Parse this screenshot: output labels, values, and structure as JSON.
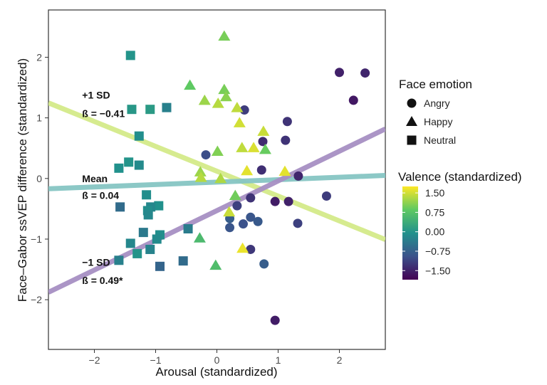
{
  "chart_data": {
    "type": "scatter",
    "xlabel": "Arousal (standardized)",
    "ylabel": "Face–Gabor ssVEP difference (standardized)",
    "xlim": [
      -2.75,
      2.75
    ],
    "ylim": [
      -2.82,
      2.78
    ],
    "x_ticks": [
      -2,
      -1,
      0,
      1,
      2
    ],
    "x_tick_labels": [
      "−2",
      "−1",
      "0",
      "1",
      "2"
    ],
    "y_ticks": [
      -2,
      -1,
      0,
      1,
      2
    ],
    "y_tick_labels": [
      "−2",
      "−1",
      "0",
      "1",
      "2"
    ],
    "grid": false,
    "legend_placement": "right",
    "shape_legend": {
      "title": "Face emotion",
      "entries": [
        {
          "label": "Angry",
          "shape": "circle"
        },
        {
          "label": "Happy",
          "shape": "triangle"
        },
        {
          "label": "Neutral",
          "shape": "square"
        }
      ]
    },
    "color_legend": {
      "title": "Valence (standardized)",
      "range": [
        -1.85,
        1.75
      ],
      "ticks": [
        1.5,
        0.75,
        0.0,
        -0.75,
        -1.5
      ],
      "tick_labels": [
        "1.50",
        "0.75",
        "0.00",
        "−0.75",
        "−1.50"
      ],
      "colormap": [
        "#440154",
        "#3b528b",
        "#21918c",
        "#5ec962",
        "#fde725"
      ]
    },
    "regression_lines": [
      {
        "label": "+1 SD",
        "beta_label": "ß = −0.41",
        "intercept": 0.12,
        "slope": -0.41,
        "color": "#d4ea8a",
        "label_x": -2.2,
        "label_y": 1.38,
        "beta_y": 1.07
      },
      {
        "label": "Mean",
        "beta_label": "ß = 0.04",
        "intercept": -0.06,
        "slope": 0.04,
        "color": "#86c6c4",
        "label_x": -2.2,
        "label_y": 0.0,
        "beta_y": -0.28
      },
      {
        "label": "−1 SD",
        "beta_label": "ß = 0.49*",
        "intercept": -0.53,
        "slope": 0.49,
        "color": "#a790c4",
        "label_x": -2.2,
        "label_y": -1.38,
        "beta_y": -1.68
      }
    ],
    "series": [
      {
        "name": "Angry",
        "shape": "circle",
        "points": [
          {
            "x": 2.0,
            "y": 1.75,
            "v": -1.5
          },
          {
            "x": 2.42,
            "y": 1.74,
            "v": -1.45
          },
          {
            "x": 2.23,
            "y": 1.29,
            "v": -1.6
          },
          {
            "x": 0.45,
            "y": 1.13,
            "v": -1.2
          },
          {
            "x": 1.15,
            "y": 0.94,
            "v": -1.3
          },
          {
            "x": 0.75,
            "y": 0.61,
            "v": -1.4
          },
          {
            "x": 1.12,
            "y": 0.63,
            "v": -1.3
          },
          {
            "x": -0.18,
            "y": 0.39,
            "v": -1.0
          },
          {
            "x": 0.73,
            "y": 0.14,
            "v": -1.35
          },
          {
            "x": 1.33,
            "y": 0.04,
            "v": -1.45
          },
          {
            "x": 1.79,
            "y": -0.29,
            "v": -1.2
          },
          {
            "x": 0.55,
            "y": -0.32,
            "v": -1.3
          },
          {
            "x": 0.95,
            "y": -0.38,
            "v": -1.55
          },
          {
            "x": 1.17,
            "y": -0.38,
            "v": -1.5
          },
          {
            "x": 0.33,
            "y": -0.45,
            "v": -1.15
          },
          {
            "x": 0.55,
            "y": -0.64,
            "v": -0.9
          },
          {
            "x": 0.21,
            "y": -0.66,
            "v": -0.8
          },
          {
            "x": 0.67,
            "y": -0.71,
            "v": -0.85
          },
          {
            "x": 1.32,
            "y": -0.74,
            "v": -1.15
          },
          {
            "x": 0.43,
            "y": -0.75,
            "v": -0.95
          },
          {
            "x": 0.21,
            "y": -0.81,
            "v": -0.9
          },
          {
            "x": 0.55,
            "y": -1.17,
            "v": -1.25
          },
          {
            "x": 0.77,
            "y": -1.41,
            "v": -0.8
          },
          {
            "x": 0.95,
            "y": -2.34,
            "v": -1.55
          }
        ]
      },
      {
        "name": "Happy",
        "shape": "triangle",
        "points": [
          {
            "x": 0.12,
            "y": 2.35,
            "v": 1.0
          },
          {
            "x": -0.44,
            "y": 1.54,
            "v": 0.85
          },
          {
            "x": 0.12,
            "y": 1.47,
            "v": 1.0
          },
          {
            "x": 0.15,
            "y": 1.35,
            "v": 1.1
          },
          {
            "x": -0.2,
            "y": 1.29,
            "v": 1.2
          },
          {
            "x": 0.02,
            "y": 1.24,
            "v": 1.35
          },
          {
            "x": 0.33,
            "y": 1.17,
            "v": 1.4
          },
          {
            "x": 0.37,
            "y": 0.92,
            "v": 1.5
          },
          {
            "x": 0.76,
            "y": 0.78,
            "v": 1.45
          },
          {
            "x": 0.41,
            "y": 0.51,
            "v": 1.4
          },
          {
            "x": 0.6,
            "y": 0.51,
            "v": 1.55
          },
          {
            "x": 0.79,
            "y": 0.48,
            "v": 0.9
          },
          {
            "x": 0.01,
            "y": 0.45,
            "v": 1.05
          },
          {
            "x": -0.27,
            "y": 0.11,
            "v": 1.2
          },
          {
            "x": 0.49,
            "y": 0.13,
            "v": 1.6
          },
          {
            "x": 1.11,
            "y": 0.12,
            "v": 1.6
          },
          {
            "x": -0.26,
            "y": 0.02,
            "v": 1.35
          },
          {
            "x": 0.06,
            "y": 0.0,
            "v": 1.3
          },
          {
            "x": 0.3,
            "y": -0.28,
            "v": 0.95
          },
          {
            "x": 0.2,
            "y": -0.55,
            "v": 1.45
          },
          {
            "x": -0.28,
            "y": -0.98,
            "v": 0.6
          },
          {
            "x": 0.42,
            "y": -1.15,
            "v": 1.65
          },
          {
            "x": -0.02,
            "y": -1.43,
            "v": 0.65
          }
        ]
      },
      {
        "name": "Neutral",
        "shape": "square",
        "points": [
          {
            "x": -1.41,
            "y": 2.03,
            "v": 0.0
          },
          {
            "x": -1.09,
            "y": 1.14,
            "v": 0.1
          },
          {
            "x": -1.39,
            "y": 1.14,
            "v": 0.05
          },
          {
            "x": -0.82,
            "y": 1.17,
            "v": -0.3
          },
          {
            "x": -1.27,
            "y": 0.7,
            "v": -0.1
          },
          {
            "x": -1.44,
            "y": 0.27,
            "v": 0.0
          },
          {
            "x": -1.27,
            "y": 0.22,
            "v": -0.15
          },
          {
            "x": -1.6,
            "y": 0.17,
            "v": -0.05
          },
          {
            "x": -1.15,
            "y": -0.27,
            "v": -0.1
          },
          {
            "x": -1.58,
            "y": -0.47,
            "v": -0.6
          },
          {
            "x": -0.95,
            "y": -0.45,
            "v": -0.05
          },
          {
            "x": -1.08,
            "y": -0.47,
            "v": -0.2
          },
          {
            "x": -1.13,
            "y": -0.53,
            "v": -0.1
          },
          {
            "x": -1.12,
            "y": -0.6,
            "v": -0.2
          },
          {
            "x": -0.47,
            "y": -0.83,
            "v": -0.35
          },
          {
            "x": -1.2,
            "y": -0.89,
            "v": -0.4
          },
          {
            "x": -0.93,
            "y": -0.93,
            "v": -0.1
          },
          {
            "x": -0.98,
            "y": -1.0,
            "v": -0.15
          },
          {
            "x": -1.41,
            "y": -1.07,
            "v": -0.2
          },
          {
            "x": -1.09,
            "y": -1.17,
            "v": -0.25
          },
          {
            "x": -1.3,
            "y": -1.24,
            "v": 0.0
          },
          {
            "x": -1.6,
            "y": -1.35,
            "v": -0.3
          },
          {
            "x": -0.55,
            "y": -1.36,
            "v": -0.6
          },
          {
            "x": -0.93,
            "y": -1.45,
            "v": -0.7
          }
        ]
      }
    ]
  }
}
